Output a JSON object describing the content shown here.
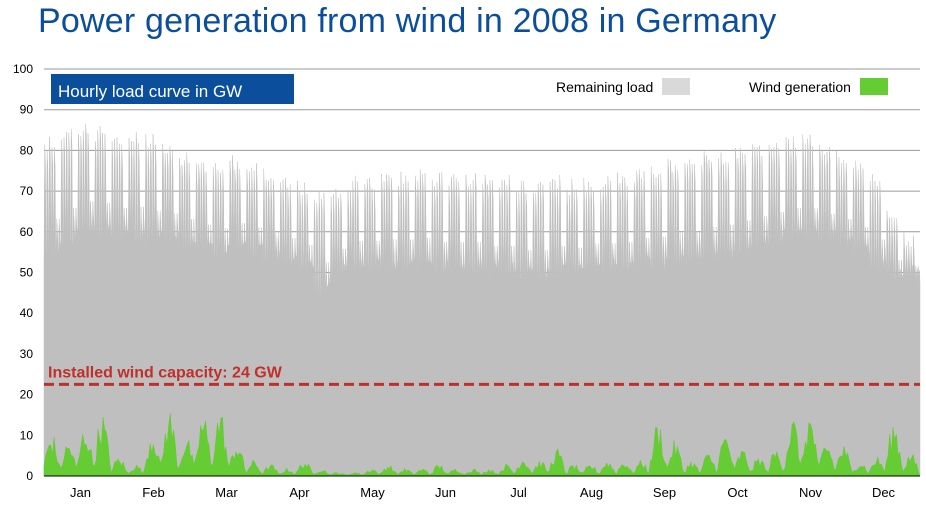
{
  "title": "Power generation from wind in 2008 in Germany",
  "chart_data": {
    "type": "area",
    "subtitle": "Hourly load curve in GW",
    "xlabel": "",
    "ylabel": "",
    "ylim": [
      0,
      100
    ],
    "yticks": [
      0,
      10,
      20,
      30,
      40,
      50,
      60,
      70,
      80,
      90,
      100
    ],
    "grid": true,
    "legend_position": "top-right",
    "x_categories": [
      "Jan",
      "Feb",
      "Mar",
      "Apr",
      "May",
      "Jun",
      "Jul",
      "Aug",
      "Sep",
      "Oct",
      "Nov",
      "Dec"
    ],
    "series": [
      {
        "name": "Remaining load",
        "color": "#bfbfbf",
        "legend_color": "#d9d9d9",
        "weekly_peak_gw": [
          84,
          86,
          87,
          86,
          84,
          85,
          84,
          82,
          80,
          78,
          77,
          79,
          78,
          76,
          74,
          73,
          70,
          72,
          74,
          74,
          75,
          75,
          76,
          75,
          75,
          75,
          74,
          74,
          73,
          73,
          74,
          73,
          74,
          74,
          75,
          76,
          77,
          78,
          79,
          80,
          80,
          81,
          82,
          83,
          84,
          84,
          82,
          80,
          78,
          75,
          66,
          60
        ],
        "weekly_min_gw": [
          52,
          55,
          57,
          57,
          56,
          56,
          55,
          55,
          54,
          53,
          52,
          53,
          52,
          51,
          50,
          48,
          43,
          47,
          49,
          49,
          49,
          49,
          49,
          48,
          48,
          48,
          47,
          47,
          46,
          46,
          47,
          47,
          48,
          48,
          48,
          49,
          49,
          50,
          50,
          51,
          52,
          53,
          54,
          55,
          56,
          56,
          55,
          54,
          52,
          49,
          46,
          47
        ]
      },
      {
        "name": "Wind generation",
        "color": "#66cc33",
        "weekly_peak_gw": [
          11,
          9,
          13,
          16,
          5,
          3,
          12,
          17,
          10,
          16,
          17,
          9,
          4,
          3,
          2,
          4,
          2,
          1,
          1,
          2,
          3,
          2,
          2,
          3,
          2,
          2,
          2,
          3,
          5,
          4,
          7,
          3,
          3,
          4,
          4,
          4,
          14,
          9,
          4,
          6,
          11,
          7,
          5,
          7,
          15,
          16,
          9,
          8,
          4,
          5,
          14,
          6
        ]
      }
    ],
    "annotations": [
      {
        "text": "Installed wind capacity: 24 GW",
        "y": 22.5,
        "style": "dashed",
        "color": "#c0302b"
      }
    ]
  }
}
